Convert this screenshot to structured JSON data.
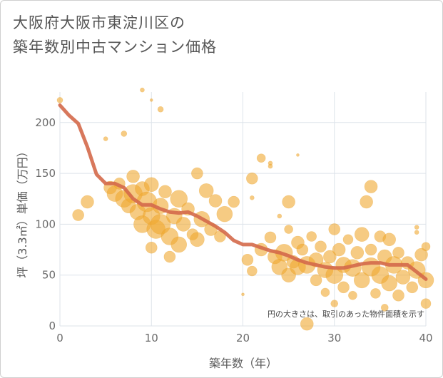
{
  "title_line1": "大阪府大阪市東淀川区の",
  "title_line2": "築年数別中古マンション価格",
  "chart_data": {
    "type": "scatter",
    "xlabel": "築年数（年）",
    "ylabel": "坪（3.3㎡）単価（万円）",
    "xlim": [
      0,
      40
    ],
    "ylim": [
      0,
      230
    ],
    "xticks": [
      "0",
      "10",
      "20",
      "30",
      "40"
    ],
    "yticks": [
      "0",
      "50",
      "100",
      "150",
      "200"
    ],
    "grid": true,
    "annotation": "円の大きさは、取引のあった物件面積を示す",
    "colors": {
      "bubble": "#f0a830",
      "line": "#d4694a",
      "grid": "#dde3ea"
    },
    "line_series": {
      "x": [
        0,
        1,
        2,
        3,
        4,
        5,
        6,
        7,
        8,
        9,
        10,
        11,
        12,
        13,
        14,
        15,
        16,
        17,
        18,
        19,
        20,
        21,
        22,
        23,
        24,
        25,
        26,
        27,
        28,
        29,
        30,
        31,
        32,
        33,
        34,
        35,
        36,
        37,
        38,
        39,
        40
      ],
      "y": [
        217,
        207,
        199,
        176,
        149,
        140,
        140,
        136,
        125,
        119,
        119,
        115,
        112,
        111,
        112,
        108,
        103,
        98,
        92,
        84,
        80,
        80,
        77,
        74,
        72,
        69,
        65,
        62,
        60,
        58,
        57,
        57,
        59,
        61,
        62,
        62,
        60,
        60,
        60,
        53,
        46
      ]
    },
    "bubbles": [
      {
        "x": 0,
        "y": 222,
        "s": 4
      },
      {
        "x": 2,
        "y": 109,
        "s": 8
      },
      {
        "x": 3,
        "y": 122,
        "s": 9
      },
      {
        "x": 5,
        "y": 184,
        "s": 3
      },
      {
        "x": 5.5,
        "y": 136,
        "s": 9
      },
      {
        "x": 6,
        "y": 130,
        "s": 11
      },
      {
        "x": 6.5,
        "y": 140,
        "s": 8
      },
      {
        "x": 7,
        "y": 189,
        "s": 4
      },
      {
        "x": 7,
        "y": 125,
        "s": 12
      },
      {
        "x": 7.5,
        "y": 118,
        "s": 10
      },
      {
        "x": 8,
        "y": 147,
        "s": 9
      },
      {
        "x": 8,
        "y": 130,
        "s": 13
      },
      {
        "x": 8.5,
        "y": 112,
        "s": 11
      },
      {
        "x": 9,
        "y": 232,
        "s": 3
      },
      {
        "x": 9,
        "y": 100,
        "s": 12
      },
      {
        "x": 9,
        "y": 135,
        "s": 10
      },
      {
        "x": 9.5,
        "y": 122,
        "s": 14
      },
      {
        "x": 10,
        "y": 222,
        "s": 2
      },
      {
        "x": 10,
        "y": 139,
        "s": 10
      },
      {
        "x": 10,
        "y": 108,
        "s": 12
      },
      {
        "x": 10,
        "y": 77,
        "s": 8
      },
      {
        "x": 10.5,
        "y": 95,
        "s": 13
      },
      {
        "x": 11,
        "y": 213,
        "s": 4
      },
      {
        "x": 11,
        "y": 118,
        "s": 11
      },
      {
        "x": 11,
        "y": 100,
        "s": 14
      },
      {
        "x": 11.5,
        "y": 132,
        "s": 9
      },
      {
        "x": 12,
        "y": 88,
        "s": 12
      },
      {
        "x": 12,
        "y": 68,
        "s": 8
      },
      {
        "x": 12.5,
        "y": 108,
        "s": 11
      },
      {
        "x": 13,
        "y": 125,
        "s": 12
      },
      {
        "x": 13,
        "y": 80,
        "s": 11
      },
      {
        "x": 13.5,
        "y": 100,
        "s": 10
      },
      {
        "x": 14,
        "y": 115,
        "s": 9
      },
      {
        "x": 14.5,
        "y": 90,
        "s": 8
      },
      {
        "x": 15,
        "y": 150,
        "s": 8
      },
      {
        "x": 15,
        "y": 85,
        "s": 10
      },
      {
        "x": 15.5,
        "y": 105,
        "s": 11
      },
      {
        "x": 16,
        "y": 133,
        "s": 10
      },
      {
        "x": 16.5,
        "y": 95,
        "s": 9
      },
      {
        "x": 17,
        "y": 123,
        "s": 9
      },
      {
        "x": 17.5,
        "y": 88,
        "s": 8
      },
      {
        "x": 18,
        "y": 110,
        "s": 11
      },
      {
        "x": 19,
        "y": 122,
        "s": 8
      },
      {
        "x": 20,
        "y": 31,
        "s": 2
      },
      {
        "x": 20.5,
        "y": 65,
        "s": 8
      },
      {
        "x": 21,
        "y": 145,
        "s": 8
      },
      {
        "x": 21,
        "y": 126,
        "s": 3
      },
      {
        "x": 21,
        "y": 54,
        "s": 7
      },
      {
        "x": 22,
        "y": 165,
        "s": 6
      },
      {
        "x": 22,
        "y": 75,
        "s": 9
      },
      {
        "x": 23,
        "y": 160,
        "s": 3
      },
      {
        "x": 23,
        "y": 157,
        "s": 3
      },
      {
        "x": 23,
        "y": 87,
        "s": 8
      },
      {
        "x": 23.5,
        "y": 68,
        "s": 10
      },
      {
        "x": 24,
        "y": 108,
        "s": 3
      },
      {
        "x": 24,
        "y": 58,
        "s": 11
      },
      {
        "x": 24.5,
        "y": 72,
        "s": 12
      },
      {
        "x": 25,
        "y": 122,
        "s": 9
      },
      {
        "x": 25,
        "y": 95,
        "s": 6
      },
      {
        "x": 25,
        "y": 50,
        "s": 10
      },
      {
        "x": 25.5,
        "y": 63,
        "s": 9
      },
      {
        "x": 26,
        "y": 168,
        "s": 2
      },
      {
        "x": 26,
        "y": 82,
        "s": 9
      },
      {
        "x": 26,
        "y": 58,
        "s": 11
      },
      {
        "x": 26.5,
        "y": 75,
        "s": 8
      },
      {
        "x": 27,
        "y": 60,
        "s": 12
      },
      {
        "x": 27,
        "y": 2,
        "s": 9
      },
      {
        "x": 27.5,
        "y": 88,
        "s": 7
      },
      {
        "x": 28,
        "y": 65,
        "s": 10
      },
      {
        "x": 28,
        "y": 45,
        "s": 8
      },
      {
        "x": 28.5,
        "y": 78,
        "s": 8
      },
      {
        "x": 29,
        "y": 55,
        "s": 11
      },
      {
        "x": 29,
        "y": 33,
        "s": 6
      },
      {
        "x": 29.5,
        "y": 68,
        "s": 9
      },
      {
        "x": 30,
        "y": 95,
        "s": 8
      },
      {
        "x": 30,
        "y": 50,
        "s": 12
      },
      {
        "x": 30,
        "y": 22,
        "s": 5
      },
      {
        "x": 30.5,
        "y": 75,
        "s": 9
      },
      {
        "x": 31,
        "y": 60,
        "s": 11
      },
      {
        "x": 31,
        "y": 38,
        "s": 8
      },
      {
        "x": 31.5,
        "y": 85,
        "s": 7
      },
      {
        "x": 32,
        "y": 57,
        "s": 12
      },
      {
        "x": 32,
        "y": 30,
        "s": 6
      },
      {
        "x": 32.5,
        "y": 72,
        "s": 9
      },
      {
        "x": 33,
        "y": 90,
        "s": 10
      },
      {
        "x": 33,
        "y": 45,
        "s": 11
      },
      {
        "x": 33.5,
        "y": 122,
        "s": 9
      },
      {
        "x": 34,
        "y": 137,
        "s": 9
      },
      {
        "x": 34,
        "y": 75,
        "s": 8
      },
      {
        "x": 34,
        "y": 58,
        "s": 13
      },
      {
        "x": 34.5,
        "y": 32,
        "s": 7
      },
      {
        "x": 35,
        "y": 88,
        "s": 8
      },
      {
        "x": 35,
        "y": 50,
        "s": 12
      },
      {
        "x": 35.5,
        "y": 18,
        "s": 5
      },
      {
        "x": 35.5,
        "y": 68,
        "s": 10
      },
      {
        "x": 36,
        "y": 85,
        "s": 9
      },
      {
        "x": 36,
        "y": 42,
        "s": 11
      },
      {
        "x": 36.5,
        "y": 60,
        "s": 12
      },
      {
        "x": 37,
        "y": 30,
        "s": 8
      },
      {
        "x": 37,
        "y": 72,
        "s": 8
      },
      {
        "x": 37.5,
        "y": 48,
        "s": 10
      },
      {
        "x": 38,
        "y": 62,
        "s": 9
      },
      {
        "x": 38.5,
        "y": 38,
        "s": 8
      },
      {
        "x": 39,
        "y": 97,
        "s": 3
      },
      {
        "x": 39,
        "y": 55,
        "s": 12
      },
      {
        "x": 39,
        "y": 92,
        "s": 3
      },
      {
        "x": 39.5,
        "y": 70,
        "s": 9
      },
      {
        "x": 40,
        "y": 45,
        "s": 11
      },
      {
        "x": 40,
        "y": 22,
        "s": 7
      },
      {
        "x": 40,
        "y": 78,
        "s": 6
      }
    ]
  }
}
